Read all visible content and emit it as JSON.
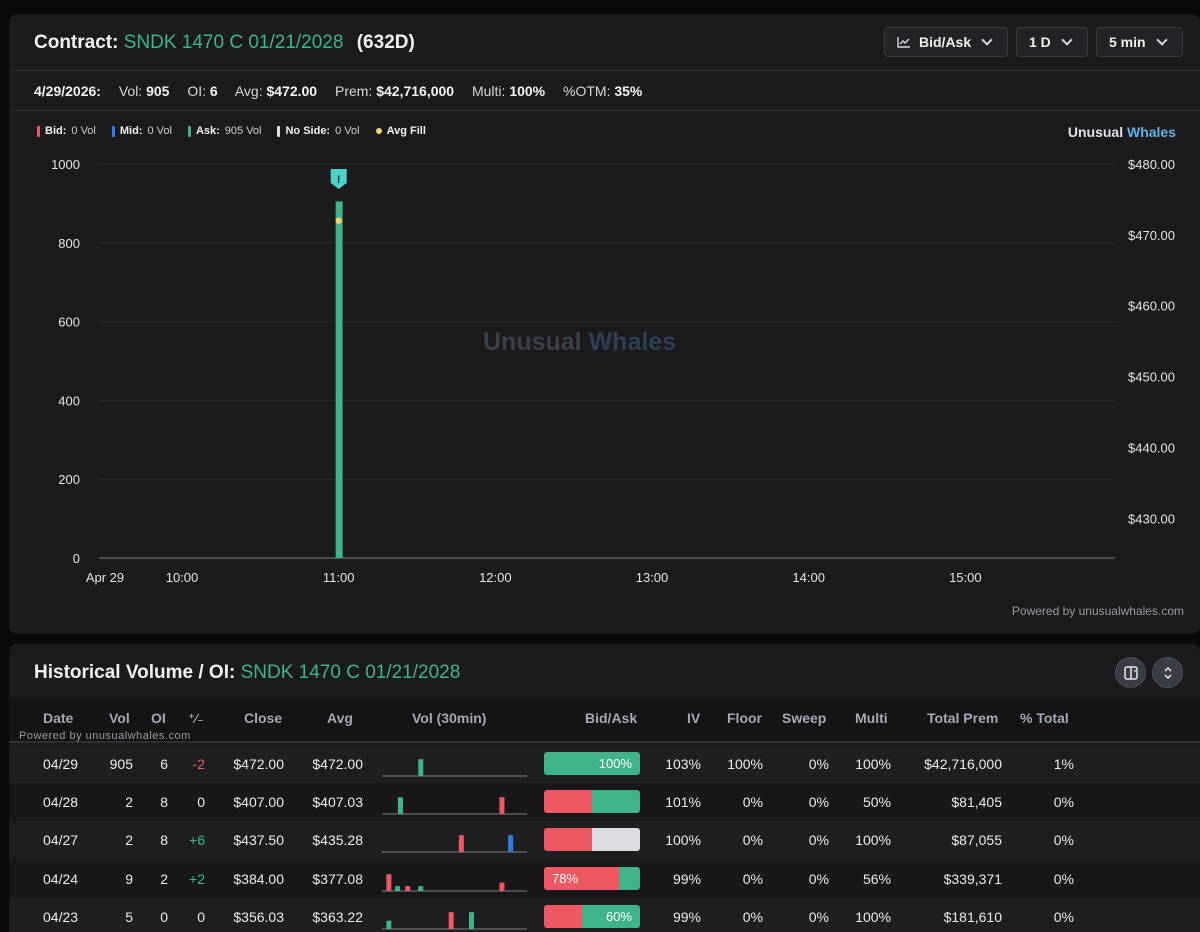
{
  "header": {
    "contract_label": "Contract:",
    "contract": "SNDK 1470 C 01/21/2028",
    "dte": "(632D)",
    "chart_mode": "Bid/Ask",
    "range": "1 D",
    "interval": "5 min"
  },
  "stats": {
    "date": "4/29/2026:",
    "vol_label": "Vol:",
    "vol": "905",
    "oi_label": "OI:",
    "oi": "6",
    "avg_label": "Avg:",
    "avg": "$472.00",
    "prem_label": "Prem:",
    "prem": "$42,716,000",
    "multi_label": "Multi:",
    "multi": "100%",
    "otm_label": "%OTM:",
    "otm": "35%"
  },
  "legend": {
    "bid_label": "Bid:",
    "bid_val": "0 Vol",
    "mid_label": "Mid:",
    "mid_val": "0 Vol",
    "ask_label": "Ask:",
    "ask_val": "905 Vol",
    "noside_label": "No Side:",
    "noside_val": "0 Vol",
    "avgfill_label": "Avg Fill"
  },
  "brand": {
    "a": "Unusual",
    "b": "Whales"
  },
  "watermark": {
    "a": "Unusual",
    "b": "Whales"
  },
  "powered": "Powered by unusualwhales.com",
  "colors": {
    "ask": "#3fb489",
    "bid": "#ee5862",
    "mid": "#2f7de1",
    "noside": "#e0e0e6",
    "avg_fill": "#f1d27a",
    "no_side_bar": "#dcdce2"
  },
  "chart_data": {
    "type": "bar",
    "x_ticks": [
      "Apr 29",
      "10:00",
      "11:00",
      "12:00",
      "13:00",
      "14:00",
      "15:00"
    ],
    "y_left_ticks": [
      "0",
      "200",
      "400",
      "600",
      "800",
      "1000"
    ],
    "y_left_range": [
      0,
      1000
    ],
    "y_right_ticks": [
      "$430.00",
      "$440.00",
      "$450.00",
      "$460.00",
      "$470.00",
      "$480.00"
    ],
    "y_right_range": [
      424.4,
      480
    ],
    "grid": true,
    "series": [
      {
        "name": "Ask",
        "points": [
          {
            "time": "11:00",
            "value": 905
          }
        ]
      }
    ],
    "avg_fill": [
      {
        "time": "11:00",
        "value": 472.0
      }
    ],
    "flag_marker": {
      "time": "11:00",
      "label": "!"
    }
  },
  "table": {
    "title_label": "Historical Volume / OI:",
    "contract": "SNDK 1470 C 01/21/2028",
    "powered": "Powered by unusualwhales.com",
    "columns": [
      "Date",
      "Vol",
      "OI",
      "+/-",
      "Close",
      "Avg",
      "Vol (30min)",
      "Bid/Ask",
      "IV",
      "Floor",
      "Sweep",
      "Multi",
      "Total Prem",
      "% Total"
    ],
    "rows": [
      {
        "date": "04/29",
        "vol": "905",
        "oi": "6",
        "chg": "-2",
        "close": "$472.00",
        "avg": "$472.00",
        "iv": "103%",
        "floor": "100%",
        "sweep": "0%",
        "multi": "100%",
        "total_prem": "$42,716,000",
        "pct_total": "1%",
        "bidask": {
          "bid": 0,
          "ask": 1.0,
          "noside": 0,
          "label": "100%"
        },
        "spark": [
          {
            "pos": 0.25,
            "h": 0.7,
            "side": "ask"
          }
        ]
      },
      {
        "date": "04/28",
        "vol": "2",
        "oi": "8",
        "chg": "0",
        "close": "$407.00",
        "avg": "$407.03",
        "iv": "101%",
        "floor": "0%",
        "sweep": "0%",
        "multi": "50%",
        "total_prem": "$81,405",
        "pct_total": "0%",
        "bidask": {
          "bid": 0.5,
          "ask": 0.5,
          "noside": 0,
          "label": ""
        },
        "spark": [
          {
            "pos": 0.11,
            "h": 0.7,
            "side": "ask"
          },
          {
            "pos": 0.81,
            "h": 0.7,
            "side": "bid"
          }
        ]
      },
      {
        "date": "04/27",
        "vol": "2",
        "oi": "8",
        "chg": "+6",
        "close": "$437.50",
        "avg": "$435.28",
        "iv": "100%",
        "floor": "0%",
        "sweep": "0%",
        "multi": "100%",
        "total_prem": "$87,055",
        "pct_total": "0%",
        "bidask": {
          "bid": 0.5,
          "ask": 0,
          "noside": 0.5,
          "label": ""
        },
        "spark": [
          {
            "pos": 0.53,
            "h": 0.7,
            "side": "bid"
          },
          {
            "pos": 0.87,
            "h": 0.7,
            "side": "mid"
          }
        ]
      },
      {
        "date": "04/24",
        "vol": "9",
        "oi": "2",
        "chg": "+2",
        "close": "$384.00",
        "avg": "$377.08",
        "iv": "99%",
        "floor": "0%",
        "sweep": "0%",
        "multi": "56%",
        "total_prem": "$339,371",
        "pct_total": "0%",
        "bidask": {
          "bid": 0.78,
          "ask": 0.22,
          "noside": 0,
          "label": "78%"
        },
        "spark": [
          {
            "pos": 0.03,
            "h": 0.7,
            "side": "bid"
          },
          {
            "pos": 0.09,
            "h": 0.2,
            "side": "ask"
          },
          {
            "pos": 0.16,
            "h": 0.2,
            "side": "bid"
          },
          {
            "pos": 0.25,
            "h": 0.2,
            "side": "ask"
          },
          {
            "pos": 0.81,
            "h": 0.35,
            "side": "bid"
          }
        ]
      },
      {
        "date": "04/23",
        "vol": "5",
        "oi": "0",
        "chg": "0",
        "close": "$356.03",
        "avg": "$363.22",
        "iv": "99%",
        "floor": "0%",
        "sweep": "0%",
        "multi": "100%",
        "total_prem": "$181,610",
        "pct_total": "0%",
        "bidask": {
          "bid": 0.4,
          "ask": 0.6,
          "noside": 0,
          "label": "60%"
        },
        "spark": [
          {
            "pos": 0.03,
            "h": 0.35,
            "side": "ask"
          },
          {
            "pos": 0.46,
            "h": 0.7,
            "side": "bid"
          },
          {
            "pos": 0.6,
            "h": 0.7,
            "side": "ask"
          }
        ]
      }
    ]
  }
}
